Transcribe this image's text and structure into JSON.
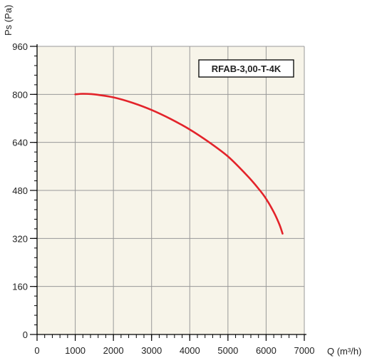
{
  "chart_data": {
    "type": "line",
    "model_label": "RFAB-3,00-T-4K",
    "xlabel": "Q (m³/h)",
    "ylabel": "Ps (Pa)",
    "xlim": [
      0,
      7000
    ],
    "ylim": [
      0,
      960
    ],
    "x_ticks": [
      0,
      1000,
      2000,
      3000,
      4000,
      5000,
      6000,
      7000
    ],
    "y_ticks": [
      0,
      160,
      320,
      480,
      640,
      800,
      960
    ],
    "x_minor_step": 200,
    "y_minor_step": 32,
    "grid": true,
    "series": [
      {
        "color": "#e3232a",
        "x": [
          1000,
          1200,
          1500,
          2000,
          2500,
          3000,
          3500,
          4000,
          4500,
          5000,
          5500,
          5800,
          6000,
          6200,
          6350,
          6430
        ],
        "y": [
          800,
          802,
          800,
          790,
          772,
          748,
          718,
          683,
          641,
          593,
          530,
          486,
          452,
          408,
          366,
          336
        ]
      }
    ]
  },
  "colors": {
    "plot_background": "#f7f4e9",
    "grid": "#999999",
    "axis": "#000000"
  }
}
